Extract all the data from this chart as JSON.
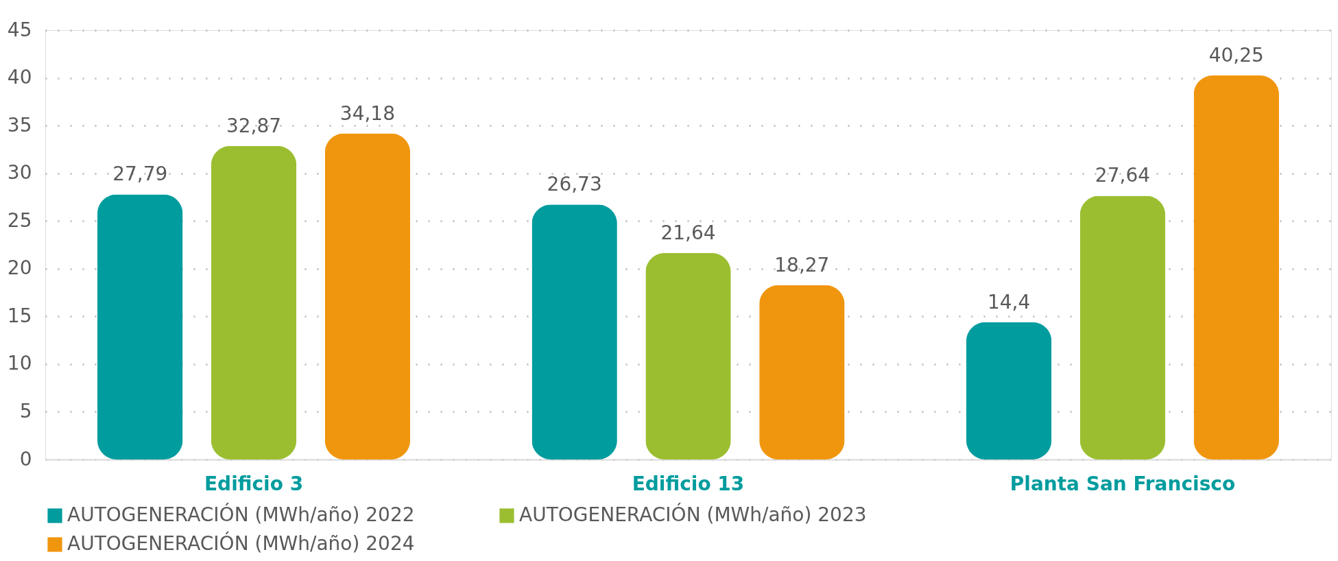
{
  "chart_data": {
    "type": "bar",
    "categories": [
      "Edificio 3",
      "Edificio 13",
      "Planta San Francisco"
    ],
    "series": [
      {
        "name": "AUTOGENERACIÓN (MWh/año) 2022",
        "color": "#009c9e",
        "values": [
          27.79,
          26.73,
          14.4
        ],
        "value_labels": [
          "27,79",
          "26,73",
          "14,4"
        ]
      },
      {
        "name": "AUTOGENERACIÓN (MWh/año) 2023",
        "color": "#9bbe30",
        "values": [
          32.87,
          21.64,
          27.64
        ],
        "value_labels": [
          "32,87",
          "21,64",
          "27,64"
        ]
      },
      {
        "name": "AUTOGENERACIÓN (MWh/año) 2024",
        "color": "#f0960e",
        "values": [
          34.18,
          18.27,
          40.25
        ],
        "value_labels": [
          "34,18",
          "18,27",
          "40,25"
        ]
      }
    ],
    "ylim": [
      0,
      45
    ],
    "yticks": [
      0,
      5,
      10,
      15,
      20,
      25,
      30,
      35,
      40,
      45
    ],
    "grid": "y",
    "legend": "bottom"
  }
}
